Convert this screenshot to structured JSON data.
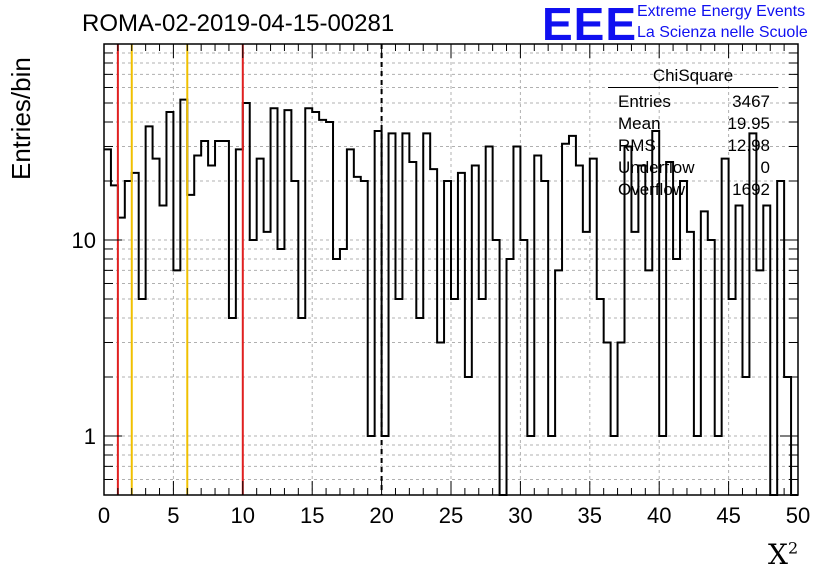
{
  "title": "ROMA-02-2019-04-15-00281",
  "logo": {
    "text": "EEE",
    "line1": "Extreme Energy Events",
    "line2": "La Scienza nelle Scuole",
    "color": "#1010f0"
  },
  "stats_box": {
    "header": "ChiSquare",
    "rows": [
      {
        "label": "Entries",
        "value": "3467"
      },
      {
        "label": "Mean",
        "value": "19.95"
      },
      {
        "label": "RMS",
        "value": "12.98"
      },
      {
        "label": "Underflow",
        "value": "0"
      },
      {
        "label": "Overflow",
        "value": "1692"
      }
    ]
  },
  "chart_data": {
    "type": "bar",
    "histogram": "step",
    "title": "ROMA-02-2019-04-15-00281",
    "xlabel": "X",
    "xlabel_sup": "2",
    "ylabel": "Entries/bin",
    "xlim": [
      0,
      50
    ],
    "ylim": [
      0.5,
      100
    ],
    "y_scale": "log",
    "grid": true,
    "bin_width": 0.5,
    "x_ticks": [
      "0",
      "5",
      "10",
      "15",
      "20",
      "25",
      "30",
      "35",
      "40",
      "45",
      "50"
    ],
    "y_ticks": [
      "1",
      "10"
    ],
    "values": [
      29,
      19,
      13,
      20,
      22,
      5,
      38,
      26,
      15,
      45,
      7,
      52,
      17,
      27,
      32,
      24,
      32,
      32,
      4,
      29,
      50,
      10,
      26,
      11,
      47,
      9,
      46,
      20,
      4,
      47,
      45,
      41,
      40,
      8,
      9,
      29,
      21,
      20,
      1,
      36,
      1,
      35,
      5,
      35,
      25,
      4,
      35,
      23,
      3,
      20,
      5,
      22,
      2,
      24,
      5,
      30,
      10,
      0.1,
      8,
      30,
      10,
      1,
      27,
      20,
      1,
      7,
      31,
      34,
      24,
      11,
      26,
      5,
      3,
      1,
      3,
      30,
      11,
      24,
      7,
      36,
      1,
      25,
      8,
      20,
      11,
      1,
      14,
      10,
      1,
      26,
      5,
      15,
      2,
      35,
      7,
      15,
      0.1,
      20,
      2,
      0.1
    ],
    "vertical_lines": [
      {
        "x": 1,
        "color": "#e02020",
        "style": "solid"
      },
      {
        "x": 2,
        "color": "#f0c000",
        "style": "solid"
      },
      {
        "x": 6,
        "color": "#f0c000",
        "style": "solid"
      },
      {
        "x": 10,
        "color": "#e02020",
        "style": "solid"
      },
      {
        "x": 20,
        "color": "#000000",
        "style": "dashed"
      }
    ]
  }
}
